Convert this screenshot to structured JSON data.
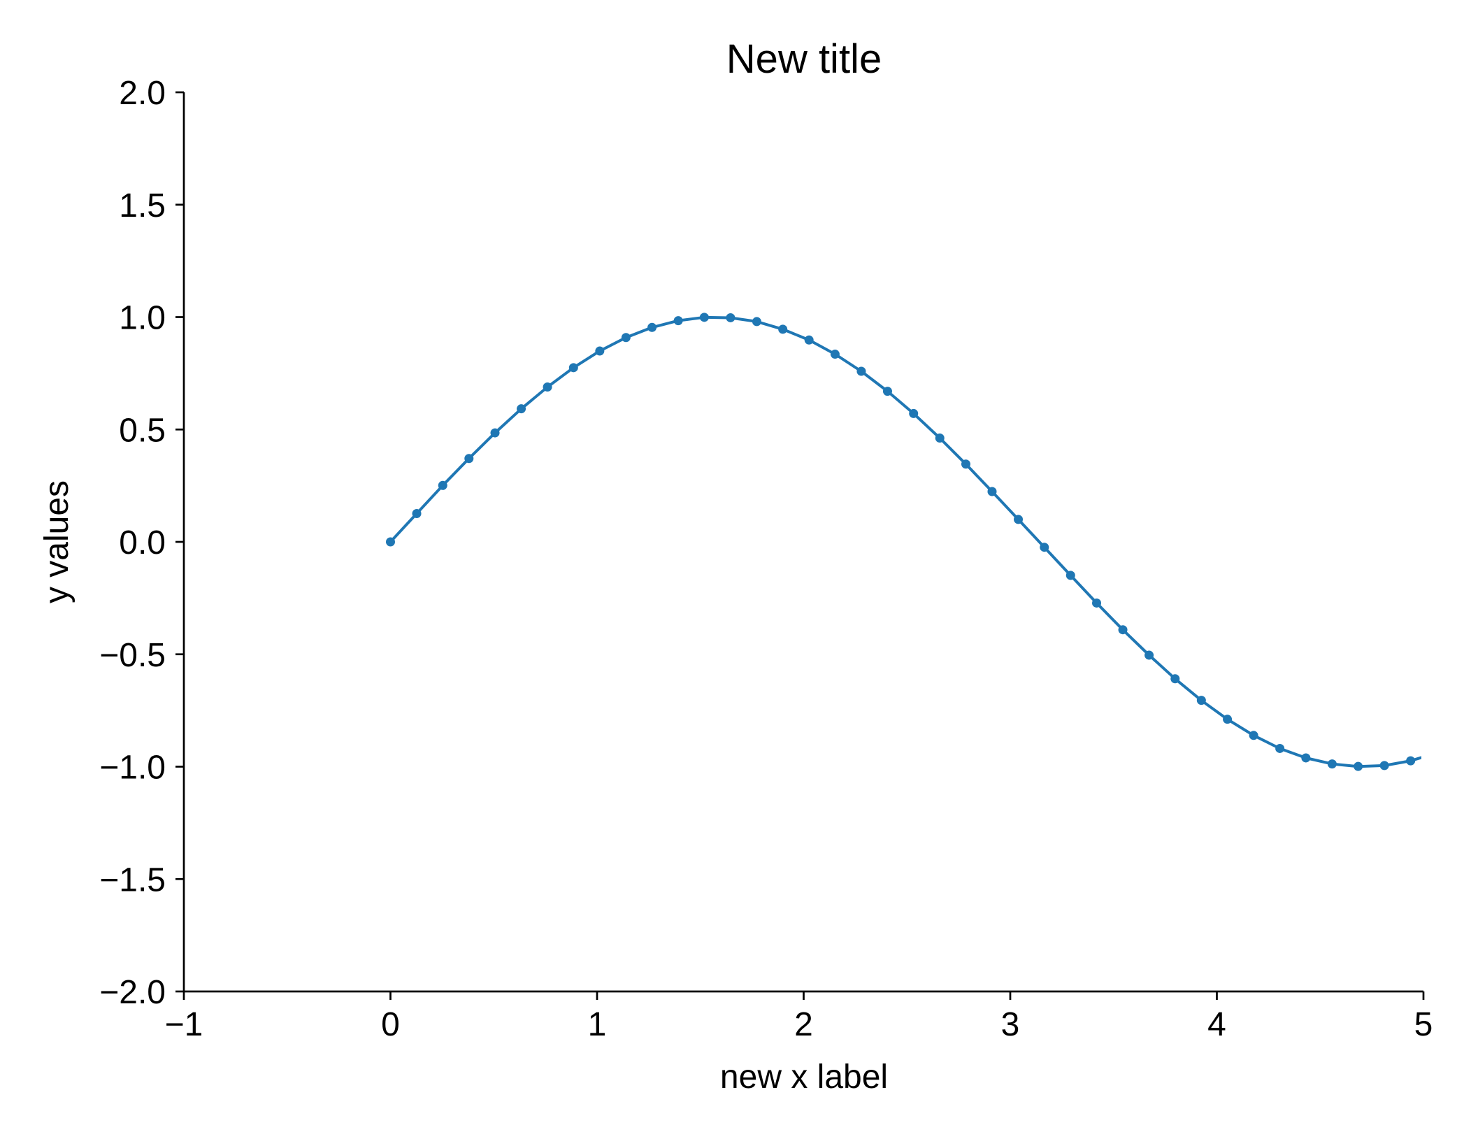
{
  "chart_data": {
    "type": "line",
    "title": "New title",
    "xlabel": "new x label",
    "ylabel": "y values",
    "xlim": [
      -1,
      5
    ],
    "ylim": [
      -2.0,
      2.0
    ],
    "xticks": [
      -1,
      0,
      1,
      2,
      3,
      4,
      5
    ],
    "xtick_labels": [
      "−1",
      "0",
      "1",
      "2",
      "3",
      "4",
      "5"
    ],
    "yticks": [
      -2.0,
      -1.5,
      -1.0,
      -0.5,
      0.0,
      0.5,
      1.0,
      1.5,
      2.0
    ],
    "ytick_labels": [
      "−2.0",
      "−1.5",
      "−1.0",
      "−0.5",
      "0.0",
      "0.5",
      "1.0",
      "1.5",
      "2.0"
    ],
    "grid": false,
    "series": [
      {
        "color": "#1f77b4",
        "marker": "dot",
        "x": [
          0.0,
          0.127,
          0.253,
          0.38,
          0.506,
          0.633,
          0.76,
          0.886,
          1.013,
          1.14,
          1.266,
          1.393,
          1.519,
          1.646,
          1.773,
          1.899,
          2.026,
          2.152,
          2.279,
          2.406,
          2.532,
          2.659,
          2.785,
          2.912,
          3.039,
          3.165,
          3.292,
          3.418,
          3.545,
          3.672,
          3.798,
          3.925,
          4.051,
          4.178,
          4.305,
          4.431,
          4.558,
          4.684,
          4.811,
          4.938,
          5.064
        ],
        "y": [
          0.0,
          0.126,
          0.251,
          0.371,
          0.485,
          0.592,
          0.689,
          0.775,
          0.849,
          0.909,
          0.954,
          0.984,
          0.999,
          0.997,
          0.98,
          0.946,
          0.898,
          0.835,
          0.759,
          0.67,
          0.571,
          0.462,
          0.346,
          0.224,
          0.1,
          -0.024,
          -0.149,
          -0.272,
          -0.391,
          -0.504,
          -0.609,
          -0.705,
          -0.789,
          -0.861,
          -0.919,
          -0.961,
          -0.988,
          -0.999,
          -0.995,
          -0.974,
          -0.939
        ]
      }
    ]
  }
}
